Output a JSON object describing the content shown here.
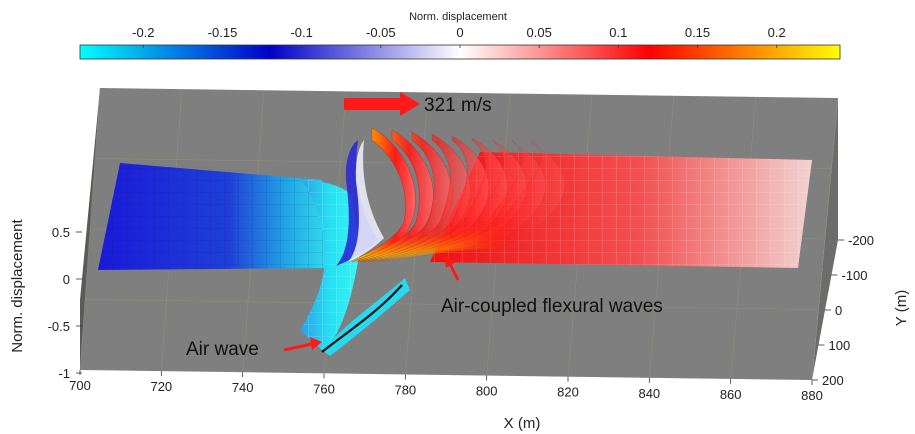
{
  "chart_data": {
    "type": "surface",
    "colorbar": {
      "title": "Norm. displacement",
      "ticks": [
        -0.2,
        -0.15,
        -0.1,
        -0.05,
        0,
        0.05,
        0.1,
        0.15,
        0.2
      ],
      "range": [
        -0.24,
        0.24
      ],
      "colors": [
        "#00ffff",
        "#0000c8",
        "#ffffff",
        "#ff0000",
        "#ffff00"
      ]
    },
    "axes": {
      "x": {
        "label": "X (m)",
        "range": [
          700,
          880
        ],
        "ticks": [
          700,
          720,
          740,
          760,
          780,
          800,
          820,
          840,
          860,
          880
        ]
      },
      "y": {
        "label": "Y (m)",
        "range": [
          -200,
          200
        ],
        "ticks": [
          -200,
          -100,
          0,
          100,
          200
        ]
      },
      "z": {
        "label": "Norm. displacement",
        "range": [
          -1,
          0.5
        ],
        "ticks": [
          0.5,
          0,
          -0.5,
          -1
        ]
      }
    },
    "grid": true,
    "annotations": [
      {
        "text": "321 m/s",
        "kind": "arrow-label"
      },
      {
        "text": "Air-coupled flexural waves",
        "kind": "arrow-label"
      },
      {
        "text": "Air wave",
        "kind": "arrow-label"
      }
    ]
  },
  "colors": {
    "floor": "#7f7f7f",
    "floor_dark": "#5c5c5c",
    "arrow": "#ff1a1a"
  }
}
